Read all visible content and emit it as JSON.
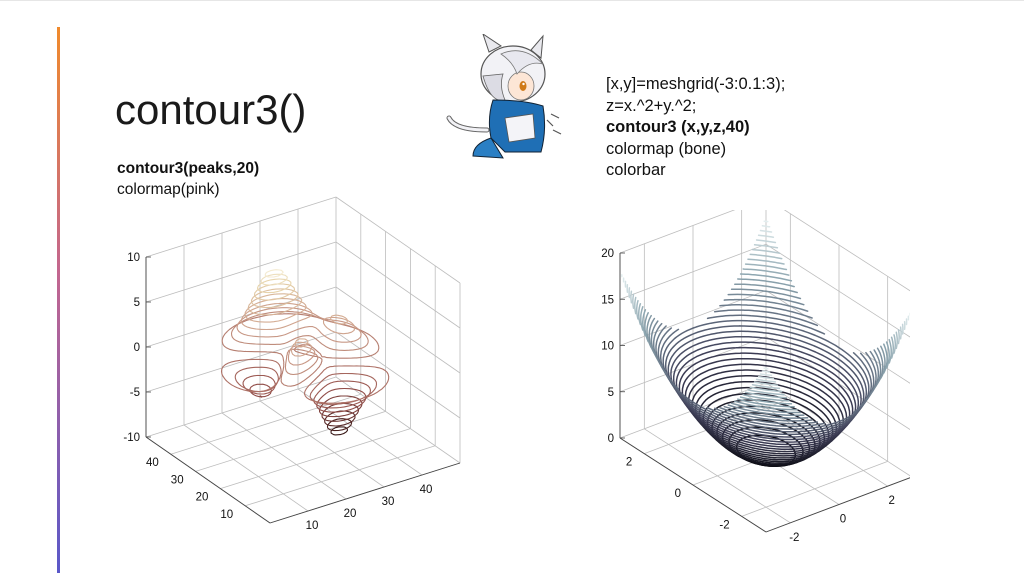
{
  "slide": {
    "title": "contour3()",
    "left_note": {
      "line1": "contour3(peaks,20)",
      "line2": "colormap(pink)"
    },
    "right_note": {
      "line1": "[x,y]=meshgrid(-3:0.1:3);",
      "line2": "z=x.^2+y.^2;",
      "line3": "contour3 (x,y,z,40)",
      "line4": "colormap (bone)",
      "line5": "colorbar"
    },
    "accent_colors": [
      "#f08a2c",
      "#c3668f",
      "#5a58c9"
    ]
  },
  "chart_data": [
    {
      "type": "contour3d",
      "function": "peaks",
      "levels": 20,
      "colormap": "pink",
      "grid": true,
      "xlim": [
        0,
        50
      ],
      "ylim": [
        0,
        50
      ],
      "zlim": [
        -10,
        10
      ],
      "x_ticks": [
        "10",
        "20",
        "30",
        "40"
      ],
      "y_ticks": [
        "10",
        "20",
        "30",
        "40"
      ],
      "z_ticks": [
        "10",
        "5",
        "0",
        "-5",
        "-10"
      ]
    },
    {
      "type": "contour3d",
      "function": "z=x.^2+y.^2",
      "levels": 40,
      "colormap": "bone",
      "grid": true,
      "xlim": [
        -3,
        3
      ],
      "ylim": [
        -3,
        3
      ],
      "zlim": [
        0,
        20
      ],
      "x_ticks": [
        "-2",
        "0",
        "2"
      ],
      "y_ticks": [
        "-2",
        "0",
        "2"
      ],
      "z_ticks": [
        "20",
        "15",
        "10",
        "5",
        "0"
      ]
    }
  ]
}
